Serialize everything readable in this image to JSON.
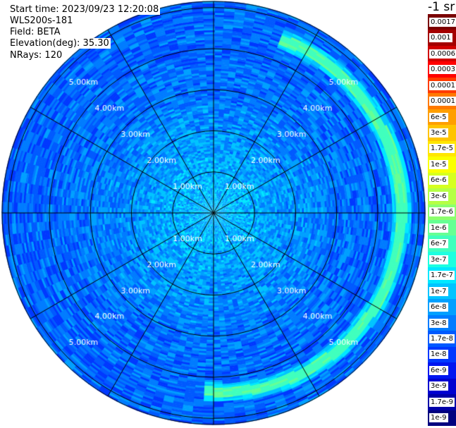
{
  "info": {
    "start_time": "Start time: 2023/09/23 12:20:08",
    "instrument": "WLS200s-181",
    "field": "Field: BETA",
    "elevation": "Elevation(deg): 35.30",
    "nrays": "NRays: 120"
  },
  "legend": {
    "title": "-1 sr",
    "labels": [
      "0.0017",
      "0.001",
      "0.0006",
      "0.0003",
      "0.00017",
      "0.0001",
      "6e-5",
      "3e-5",
      "1.7e-5",
      "1e-5",
      "6e-6",
      "3e-6",
      "1.7e-6",
      "1e-6",
      "6e-7",
      "3e-7",
      "1.7e-7",
      "1e-7",
      "6e-8",
      "3e-8",
      "1.7e-8",
      "1e-8",
      "6e-9",
      "3e-9",
      "1.7e-9",
      "1e-9"
    ],
    "colors": [
      "#7a0000",
      "#a40000",
      "#d00000",
      "#ff0000",
      "#ff3b00",
      "#ff7a00",
      "#ff9f00",
      "#ffc400",
      "#ffe600",
      "#fbff00",
      "#d6ff1f",
      "#b5ff45",
      "#8cff6e",
      "#66ff94",
      "#40ffbd",
      "#1dffe0",
      "#00e8ff",
      "#00c4ff",
      "#00a0ff",
      "#007cff",
      "#005aff",
      "#0038ff",
      "#0016f0",
      "#0000d0",
      "#0000a8",
      "#00007f"
    ]
  },
  "chart_data": {
    "type": "heatmap",
    "projection": "polar (PPI)",
    "field": "BETA",
    "range_rings_km": [
      1,
      2,
      3,
      4,
      5
    ],
    "range_ring_labels": [
      "1.00km",
      "2.00km",
      "3.00km",
      "4.00km",
      "5.00km"
    ],
    "max_range_km": 5.15,
    "n_rays": 120,
    "radial_lines_deg": [
      0,
      30,
      60,
      90,
      120,
      150,
      180,
      210,
      240,
      270,
      300,
      330
    ],
    "value_scale": "log",
    "value_range": [
      1e-09,
      0.0017
    ],
    "approx_profile_log10_beta": [
      {
        "range_km": 0.0,
        "value": -7.0
      },
      {
        "range_km": 1.0,
        "value": -7.1
      },
      {
        "range_km": 2.0,
        "value": -7.3
      },
      {
        "range_km": 3.0,
        "value": -7.5
      },
      {
        "range_km": 4.0,
        "value": -7.6
      },
      {
        "range_km": 5.0,
        "value": -7.6
      }
    ],
    "enhanced_arc": {
      "range_km": 4.3,
      "azimuth_deg_from": 20,
      "azimuth_deg_to": 182,
      "value_log10": -6.2
    }
  }
}
